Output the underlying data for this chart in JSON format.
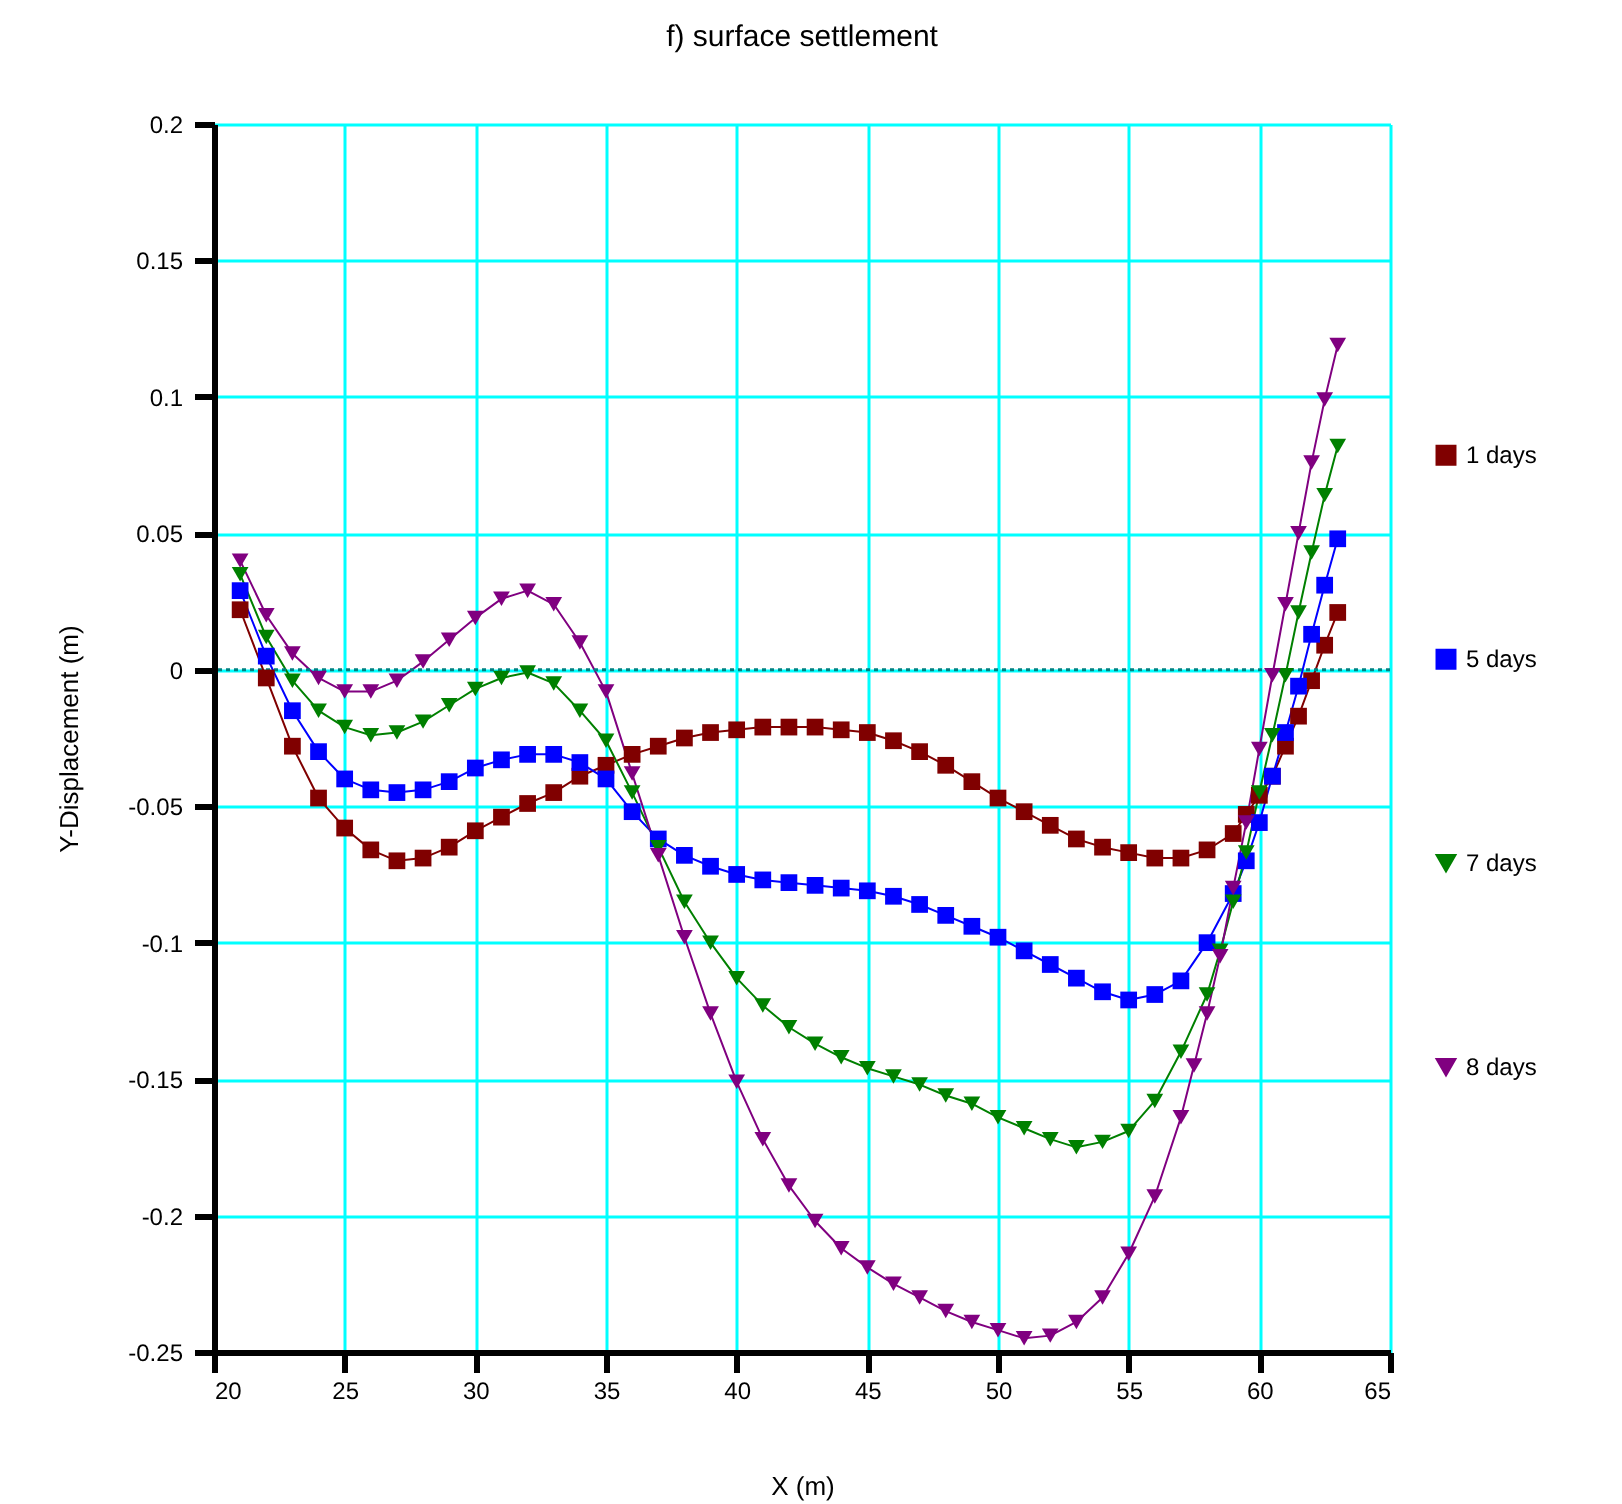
{
  "chart_data": {
    "type": "line",
    "title": "f) surface settlement",
    "xlabel": "X (m)",
    "ylabel": "Y-Displacement (m)",
    "xlim": [
      20,
      65
    ],
    "xticks": [
      20,
      25,
      30,
      35,
      40,
      45,
      50,
      55,
      60,
      65
    ],
    "ylim": [
      -0.25,
      0.2
    ],
    "yticks": [
      -0.25,
      -0.2,
      -0.15,
      -0.1,
      -0.05,
      0,
      0.05,
      0.1,
      0.15,
      0.2
    ],
    "grid": true,
    "legend": "right",
    "line_style": "solid",
    "ref_lines": [
      {
        "axis": "y",
        "value": 0,
        "color": "#008080",
        "line_style": "dotted"
      }
    ],
    "series": [
      {
        "name": "1 days",
        "color": "#800000",
        "marker": "square",
        "x": [
          21,
          22,
          23,
          24,
          25,
          26,
          27,
          28,
          29,
          30,
          31,
          32,
          33,
          34,
          35,
          36,
          37,
          38,
          39,
          40,
          41,
          42,
          43,
          44,
          45,
          46,
          47,
          48,
          49,
          50,
          51,
          52,
          53,
          54,
          55,
          56,
          57,
          58,
          59,
          59.5,
          60,
          60.5,
          61,
          61.5,
          62,
          62.5,
          63
        ],
        "values": [
          0.022,
          -0.003,
          -0.028,
          -0.047,
          -0.058,
          -0.066,
          -0.07,
          -0.069,
          -0.065,
          -0.059,
          -0.054,
          -0.049,
          -0.045,
          -0.039,
          -0.035,
          -0.031,
          -0.028,
          -0.025,
          -0.023,
          -0.022,
          -0.021,
          -0.021,
          -0.021,
          -0.022,
          -0.023,
          -0.026,
          -0.03,
          -0.035,
          -0.041,
          -0.047,
          -0.052,
          -0.057,
          -0.062,
          -0.065,
          -0.067,
          -0.069,
          -0.069,
          -0.066,
          -0.06,
          -0.053,
          -0.046,
          -0.039,
          -0.028,
          -0.017,
          -0.004,
          0.009,
          0.021
        ]
      },
      {
        "name": "5 days",
        "color": "#0000ff",
        "marker": "square",
        "x": [
          21,
          22,
          23,
          24,
          25,
          26,
          27,
          28,
          29,
          30,
          31,
          32,
          33,
          34,
          35,
          36,
          37,
          38,
          39,
          40,
          41,
          42,
          43,
          44,
          45,
          46,
          47,
          48,
          49,
          50,
          51,
          52,
          53,
          54,
          55,
          56,
          57,
          58,
          59,
          59.5,
          60,
          60.5,
          61,
          61.5,
          62,
          62.5,
          63
        ],
        "values": [
          0.029,
          0.005,
          -0.015,
          -0.03,
          -0.04,
          -0.044,
          -0.045,
          -0.044,
          -0.041,
          -0.036,
          -0.033,
          -0.031,
          -0.031,
          -0.034,
          -0.04,
          -0.052,
          -0.062,
          -0.068,
          -0.072,
          -0.075,
          -0.077,
          -0.078,
          -0.079,
          -0.08,
          -0.081,
          -0.083,
          -0.086,
          -0.09,
          -0.094,
          -0.098,
          -0.103,
          -0.108,
          -0.113,
          -0.118,
          -0.121,
          -0.119,
          -0.114,
          -0.1,
          -0.082,
          -0.07,
          -0.056,
          -0.039,
          -0.023,
          -0.006,
          0.013,
          0.031,
          0.048
        ]
      },
      {
        "name": "7 days",
        "color": "#008000",
        "marker": "triangle",
        "x": [
          21,
          22,
          23,
          24,
          25,
          26,
          27,
          28,
          29,
          30,
          31,
          32,
          33,
          34,
          35,
          36,
          37,
          38,
          39,
          40,
          41,
          42,
          43,
          44,
          45,
          46,
          47,
          48,
          49,
          50,
          51,
          52,
          53,
          54,
          55,
          56,
          57,
          58,
          58.5,
          59,
          59.5,
          60,
          60.5,
          61,
          61.5,
          62,
          62.5,
          63
        ],
        "values": [
          0.035,
          0.012,
          -0.004,
          -0.015,
          -0.021,
          -0.024,
          -0.023,
          -0.019,
          -0.013,
          -0.007,
          -0.003,
          -0.001,
          -0.005,
          -0.015,
          -0.026,
          -0.045,
          -0.065,
          -0.085,
          -0.1,
          -0.113,
          -0.123,
          -0.131,
          -0.137,
          -0.142,
          -0.146,
          -0.149,
          -0.152,
          -0.156,
          -0.159,
          -0.164,
          -0.168,
          -0.172,
          -0.175,
          -0.173,
          -0.169,
          -0.158,
          -0.14,
          -0.119,
          -0.103,
          -0.085,
          -0.067,
          -0.045,
          -0.024,
          -0.002,
          0.021,
          0.043,
          0.064,
          0.082
        ]
      },
      {
        "name": "8 days",
        "color": "#800080",
        "marker": "triangle",
        "x": [
          21,
          22,
          23,
          24,
          25,
          26,
          27,
          28,
          29,
          30,
          31,
          32,
          33,
          34,
          35,
          36,
          37,
          38,
          39,
          40,
          41,
          42,
          43,
          44,
          45,
          46,
          47,
          48,
          49,
          50,
          51,
          52,
          53,
          54,
          55,
          56,
          57,
          57.5,
          58,
          58.5,
          59,
          59.5,
          60,
          60.5,
          61,
          61.5,
          62,
          62.5,
          63
        ],
        "values": [
          0.04,
          0.02,
          0.006,
          -0.003,
          -0.008,
          -0.008,
          -0.004,
          0.003,
          0.011,
          0.019,
          0.026,
          0.029,
          0.024,
          0.01,
          -0.008,
          -0.038,
          -0.068,
          -0.098,
          -0.126,
          -0.151,
          -0.172,
          -0.189,
          -0.202,
          -0.212,
          -0.219,
          -0.225,
          -0.23,
          -0.235,
          -0.239,
          -0.242,
          -0.245,
          -0.244,
          -0.239,
          -0.23,
          -0.214,
          -0.193,
          -0.164,
          -0.145,
          -0.126,
          -0.105,
          -0.08,
          -0.056,
          -0.029,
          -0.002,
          0.024,
          0.05,
          0.076,
          0.099,
          0.119
        ]
      }
    ]
  }
}
